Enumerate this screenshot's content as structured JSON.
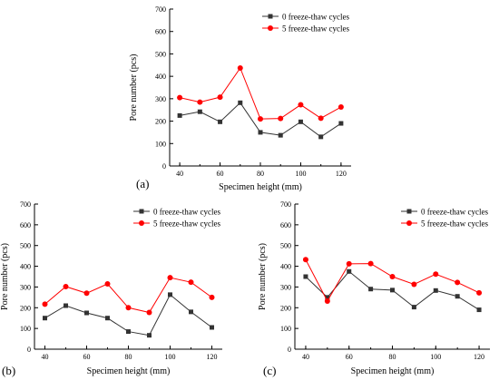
{
  "legend_entries": [
    "0 freeze-thaw cycles",
    "5 freeze-thaw cycles"
  ],
  "colors": {
    "series0": "#333333",
    "series1": "#ff0000",
    "axis": "#000000"
  },
  "chart_data": [
    {
      "type": "line",
      "panel_label": "(a)",
      "xlabel": "Specimen height (mm)",
      "ylabel": "Pore number (pcs)",
      "x": [
        40,
        50,
        60,
        70,
        80,
        90,
        100,
        110,
        120
      ],
      "xlim": [
        35,
        125
      ],
      "ylim": [
        0,
        700
      ],
      "xticks": [
        40,
        60,
        80,
        100,
        120
      ],
      "yticks": [
        0,
        100,
        200,
        300,
        400,
        500,
        600,
        700
      ],
      "legend_position": "top-right",
      "grid": false,
      "series": [
        {
          "name": "0 freeze-thaw cycles",
          "marker": "square",
          "values": [
            225,
            242,
            197,
            282,
            150,
            137,
            197,
            130,
            190
          ]
        },
        {
          "name": "5 freeze-thaw cycles",
          "marker": "circle",
          "values": [
            305,
            285,
            307,
            437,
            210,
            212,
            273,
            213,
            263
          ]
        }
      ]
    },
    {
      "type": "line",
      "panel_label": "(b)",
      "xlabel": "Specimen height (mm)",
      "ylabel": "Pore number (pcs)",
      "x": [
        40,
        50,
        60,
        70,
        80,
        90,
        100,
        110,
        120
      ],
      "xlim": [
        35,
        125
      ],
      "ylim": [
        0,
        700
      ],
      "xticks": [
        40,
        60,
        80,
        100,
        120
      ],
      "yticks": [
        0,
        100,
        200,
        300,
        400,
        500,
        600,
        700
      ],
      "legend_position": "top-right",
      "grid": false,
      "series": [
        {
          "name": "0 freeze-thaw cycles",
          "marker": "square",
          "values": [
            150,
            210,
            175,
            150,
            85,
            67,
            263,
            180,
            105
          ]
        },
        {
          "name": "5 freeze-thaw cycles",
          "marker": "circle",
          "values": [
            217,
            302,
            270,
            315,
            200,
            177,
            345,
            323,
            250
          ]
        }
      ]
    },
    {
      "type": "line",
      "panel_label": "(c)",
      "xlabel": "Specimen height (mm)",
      "ylabel": "Pore number (pcs)",
      "x": [
        40,
        50,
        60,
        70,
        80,
        90,
        100,
        110,
        120
      ],
      "xlim": [
        35,
        125
      ],
      "ylim": [
        0,
        700
      ],
      "xticks": [
        40,
        60,
        80,
        100,
        120
      ],
      "yticks": [
        0,
        100,
        200,
        300,
        400,
        500,
        600,
        700
      ],
      "legend_position": "top-right",
      "grid": false,
      "series": [
        {
          "name": "0 freeze-thaw cycles",
          "marker": "square",
          "values": [
            350,
            250,
            375,
            290,
            285,
            203,
            283,
            255,
            190
          ]
        },
        {
          "name": "5 freeze-thaw cycles",
          "marker": "circle",
          "values": [
            432,
            232,
            412,
            413,
            350,
            313,
            362,
            322,
            272
          ]
        }
      ]
    }
  ]
}
